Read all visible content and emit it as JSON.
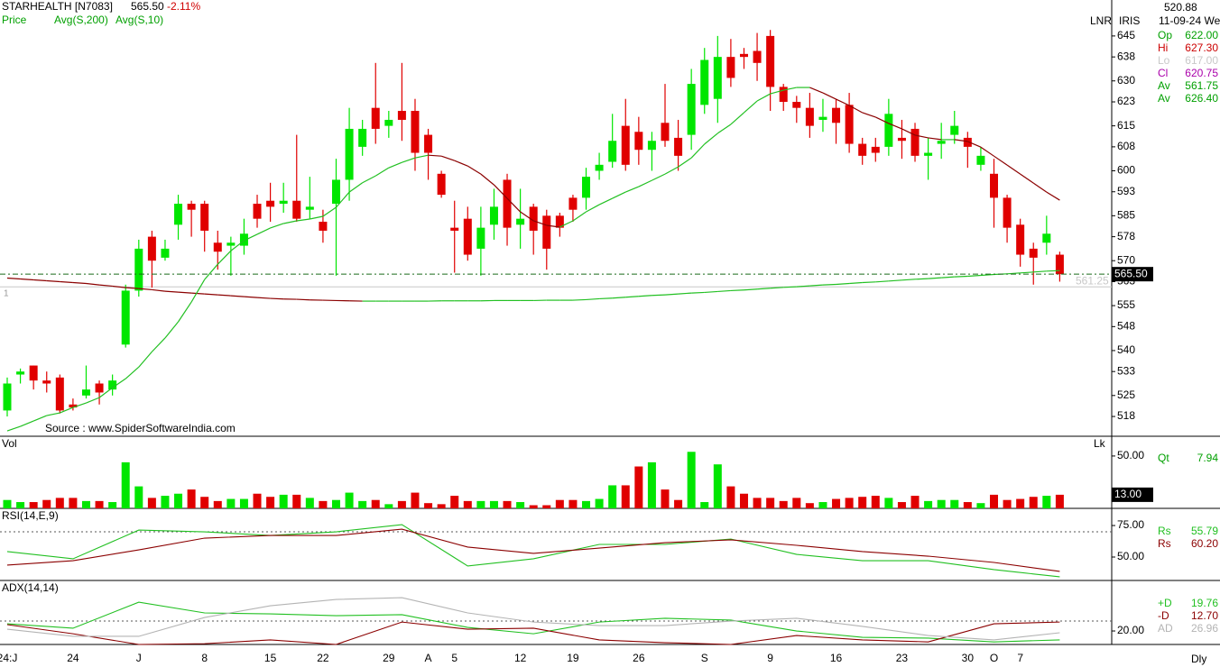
{
  "info": {
    "cursor": "520.88",
    "date": "11-09-24 We",
    "tags": [
      "LNR",
      "IRIS"
    ],
    "rows": [
      {
        "name": "Op",
        "value": "622.00",
        "color": "#00a000"
      },
      {
        "name": "Hi",
        "value": "627.30",
        "color": "#cc0000"
      },
      {
        "name": "Lo",
        "value": "617.00",
        "color": "#c8c8c8"
      },
      {
        "name": "Cl",
        "value": "620.75",
        "color": "#aa00aa"
      },
      {
        "name": "Av",
        "value": "561.75",
        "color": "#00a000"
      },
      {
        "name": "Av",
        "value": "626.40",
        "color": "#00a000"
      }
    ],
    "source": "Source : www.SpiderSoftwareIndia.com",
    "period": "Dly"
  },
  "chart_data": [
    {
      "type": "candlestick",
      "title": "STARHEALTH [N7083]",
      "last": {
        "value": 565.5,
        "label": "565.50"
      },
      "change": {
        "value": -2.11,
        "label": "-2.11%"
      },
      "reference": {
        "value": 561.25,
        "label": "561.25"
      },
      "note": "1",
      "axis_label": "LNR",
      "ylim": [
        511.4,
        657.0
      ],
      "yticks": [
        645,
        638,
        630,
        623,
        615,
        608,
        600,
        593,
        585,
        578,
        570,
        563,
        555,
        548,
        540,
        533,
        525,
        518
      ],
      "categories": [
        "24:J",
        null,
        null,
        null,
        null,
        "24",
        null,
        null,
        null,
        null,
        "J",
        null,
        null,
        null,
        null,
        "8",
        null,
        null,
        null,
        null,
        "15",
        null,
        null,
        null,
        "22",
        null,
        null,
        null,
        null,
        "29",
        null,
        null,
        "A",
        null,
        "5",
        null,
        null,
        null,
        null,
        "12",
        null,
        null,
        null,
        "19",
        null,
        null,
        null,
        null,
        "26",
        null,
        null,
        null,
        null,
        "S",
        null,
        null,
        null,
        null,
        "9",
        null,
        null,
        null,
        null,
        "16",
        null,
        null,
        null,
        null,
        "23",
        null,
        null,
        null,
        null,
        "30",
        null,
        "O",
        null,
        "7",
        null,
        null,
        null
      ],
      "candles": {
        "name": "Price",
        "up_color": "#00e600",
        "down_color": "#e00000",
        "open": [
          520,
          532,
          535,
          530,
          531,
          522,
          525,
          529,
          527,
          542,
          560,
          578,
          571,
          582,
          589,
          589,
          576,
          575,
          575,
          589,
          590,
          589,
          590,
          587,
          583,
          589,
          597,
          608,
          621,
          615,
          620,
          620,
          612,
          599,
          581,
          584,
          574,
          582,
          597,
          582,
          588,
          585,
          585,
          591,
          591,
          600,
          603,
          615,
          613,
          607,
          616,
          611,
          612,
          622,
          624,
          638,
          639,
          640,
          645,
          628,
          623,
          621,
          617,
          621,
          622,
          609,
          608,
          608,
          611,
          614,
          605,
          609,
          612,
          611,
          602,
          599,
          591,
          582,
          574,
          576,
          572
        ],
        "high": [
          531,
          534,
          535,
          533,
          532,
          524,
          535,
          530,
          532,
          562,
          577,
          580,
          577,
          592,
          590,
          590,
          580,
          578,
          584,
          592,
          596,
          596,
          612,
          598,
          587,
          604,
          621,
          617,
          636,
          620,
          636,
          624,
          614,
          600,
          590,
          588,
          588,
          594,
          599,
          594,
          589,
          587,
          586,
          592,
          601,
          606,
          619,
          624,
          618,
          613,
          629,
          617,
          634,
          641,
          645,
          644,
          641,
          646,
          647,
          629,
          625,
          626,
          624,
          624,
          626,
          611,
          611,
          624,
          617,
          616,
          611,
          616,
          620,
          613,
          608,
          604,
          592,
          584,
          576,
          585,
          573
        ],
        "low": [
          518,
          529,
          527,
          526,
          519,
          520,
          524,
          522,
          525,
          541,
          558,
          561,
          570,
          577,
          578,
          573,
          567,
          565,
          572,
          581,
          583,
          586,
          583,
          584,
          576,
          565,
          590,
          605,
          609,
          611,
          610,
          600,
          597,
          591,
          566,
          570,
          565,
          577,
          575,
          574,
          572,
          567,
          578,
          583,
          587,
          597,
          601,
          600,
          602,
          600,
          608,
          600,
          607,
          619,
          616,
          628,
          634,
          630,
          620,
          620,
          616,
          611,
          613,
          609,
          606,
          602,
          603,
          605,
          604,
          603,
          597,
          604,
          609,
          601,
          600,
          581,
          576,
          568,
          562,
          572,
          563
        ],
        "close": [
          529,
          533,
          530,
          529,
          520,
          521,
          527,
          526,
          530,
          560,
          574,
          570,
          574,
          589,
          587,
          580,
          573,
          576,
          579,
          584,
          588,
          590,
          584,
          588,
          580,
          597,
          614,
          614,
          614,
          617,
          617,
          606,
          606,
          592,
          580,
          572,
          581,
          588,
          581,
          584,
          580,
          574,
          581,
          587,
          598,
          602,
          610,
          602,
          607,
          610,
          610,
          605,
          629,
          637,
          638,
          631,
          638,
          636,
          628,
          623,
          621,
          615,
          618,
          616,
          609,
          605,
          606,
          619,
          610,
          605,
          606,
          610,
          615,
          608,
          605,
          591,
          581,
          572,
          571,
          579,
          565.5
        ]
      },
      "series": [
        {
          "name": "Avg(S,200)",
          "color": "#22c022",
          "down_color": "#8b0000",
          "values": [
            564.2,
            563.9,
            563.6,
            563.3,
            563.0,
            562.7,
            562.4,
            561.9,
            561.5,
            561.0,
            560.7,
            560.3,
            559.8,
            559.5,
            559.2,
            558.9,
            558.6,
            558.3,
            558.0,
            557.7,
            557.4,
            557.2,
            557.1,
            556.9,
            556.8,
            556.7,
            556.6,
            556.5,
            556.5,
            556.5,
            556.5,
            556.5,
            556.5,
            556.6,
            556.6,
            556.6,
            556.6,
            556.7,
            556.7,
            556.7,
            556.7,
            556.8,
            556.8,
            556.8,
            557.0,
            557.3,
            557.5,
            557.8,
            558.1,
            558.4,
            558.6,
            558.9,
            559.2,
            559.4,
            559.7,
            560.0,
            560.2,
            560.5,
            560.8,
            561.1,
            561.3,
            561.6,
            561.9,
            562.1,
            562.4,
            562.7,
            562.9,
            563.2,
            563.5,
            563.8,
            564.0,
            564.3,
            564.6,
            564.8,
            565.1,
            565.4,
            565.6,
            565.9,
            566.2,
            566.5,
            566.7
          ]
        },
        {
          "name": "Avg(S,10)",
          "color": "#22c022",
          "down_color": "#8b0000",
          "values": [
            513.2,
            514.7,
            516.5,
            518.3,
            519.2,
            521.0,
            522.5,
            524.3,
            527.6,
            530.6,
            534.5,
            539.6,
            544.2,
            549.6,
            556.2,
            563.7,
            568.8,
            573.3,
            576.7,
            578.8,
            580.9,
            582.4,
            583.3,
            583.9,
            584.8,
            587.8,
            592.9,
            596.0,
            598.3,
            601.0,
            602.8,
            604.3,
            605.2,
            604.9,
            603.4,
            601.6,
            598.9,
            595.3,
            590.8,
            586.3,
            583.3,
            581.8,
            581.2,
            583.3,
            586.3,
            588.7,
            590.8,
            592.9,
            594.7,
            596.8,
            598.9,
            601.3,
            604.3,
            608.9,
            612.5,
            615.5,
            619.4,
            623.3,
            625.7,
            626.9,
            627.8,
            627.8,
            626.0,
            623.9,
            621.8,
            619.4,
            617.9,
            615.8,
            614.0,
            611.9,
            611.0,
            610.4,
            610.4,
            609.8,
            607.9,
            604.9,
            601.9,
            598.9,
            595.9,
            592.9,
            590.2
          ]
        }
      ]
    },
    {
      "type": "bar",
      "title": "Vol",
      "unit": "Lk",
      "readout": {
        "name": "Qt",
        "value": "7.94"
      },
      "marker": {
        "value": 13,
        "label": "13.00"
      },
      "ylim": [
        0,
        68
      ],
      "yticks": [
        {
          "value": 50,
          "label": "50.00"
        }
      ],
      "values": [
        8,
        6,
        6,
        8,
        10,
        10,
        7,
        7,
        6,
        44,
        21,
        10,
        12,
        14,
        18,
        11,
        7,
        9,
        9,
        14,
        11,
        13,
        13,
        10,
        7,
        8,
        15,
        7,
        8,
        4,
        7,
        15,
        5,
        4,
        12,
        7,
        7,
        7,
        7,
        6,
        3,
        3,
        8,
        8,
        7,
        9,
        22,
        22,
        40,
        44,
        18,
        8,
        54,
        6,
        42,
        21,
        14,
        10,
        10,
        7,
        10,
        5,
        6,
        9,
        10,
        11,
        12,
        10,
        6,
        12,
        7,
        8,
        8,
        6,
        5,
        13,
        8,
        9,
        11,
        12,
        13
      ]
    },
    {
      "type": "line",
      "title": "RSI(14,E,9)",
      "ylim": [
        31.4,
        87.9
      ],
      "yticks": [
        {
          "value": 75,
          "label": "75.00"
        },
        {
          "value": 50,
          "label": "50.00"
        }
      ],
      "guides": [
        70
      ],
      "x": [
        0,
        5,
        10,
        15,
        20,
        25,
        30,
        35,
        40,
        45,
        50,
        55,
        60,
        65,
        70,
        75,
        80
      ],
      "series": [
        {
          "name": "Rs",
          "readout": "55.79",
          "color": "#22c022",
          "values": [
            54.3,
            48.6,
            71.4,
            70,
            67.1,
            70,
            75.7,
            42.9,
            48.6,
            60,
            60,
            64.3,
            52.1,
            47.1,
            47.1,
            40,
            34.3
          ]
        },
        {
          "name": "Rs",
          "readout": "60.20",
          "color": "#8b0000",
          "values": [
            43.6,
            47.1,
            55.7,
            65,
            67.1,
            67.1,
            72.1,
            57.9,
            52.9,
            57.1,
            61.4,
            63.6,
            59.3,
            54.3,
            50.7,
            45.7,
            38.6
          ]
        }
      ]
    },
    {
      "type": "line",
      "title": "ADX(14,14)",
      "ylim": [
        13.2,
        45
      ],
      "yticks": [
        {
          "value": 20,
          "label": "20.00"
        }
      ],
      "guides": [
        25
      ],
      "x": [
        0,
        5,
        10,
        15,
        20,
        25,
        30,
        35,
        40,
        45,
        50,
        55,
        60,
        65,
        70,
        75,
        80
      ],
      "series": [
        {
          "name": "+D",
          "readout": "19.76",
          "color": "#22c022",
          "values": [
            23.6,
            21.4,
            34.5,
            29.1,
            28.6,
            27.7,
            28.2,
            21.8,
            18.6,
            24.5,
            26.4,
            25.5,
            20,
            16.8,
            16.4,
            14.5,
            15.5
          ]
        },
        {
          "name": "-D",
          "readout": "12.70",
          "color": "#8b0000",
          "values": [
            23.2,
            18.6,
            13.2,
            13.6,
            15.5,
            13.2,
            24.5,
            20.9,
            21.4,
            15.5,
            14.1,
            13.2,
            17.7,
            15.5,
            14.5,
            23.6,
            24.5
          ]
        },
        {
          "name": "AD",
          "readout": "26.96",
          "color": "#b4b4b4",
          "values": [
            20.9,
            17.3,
            17.3,
            26.8,
            32.7,
            35.9,
            36.8,
            29.1,
            24.5,
            22.7,
            22.7,
            25,
            26.4,
            22.3,
            17.7,
            15.5,
            19.1
          ]
        }
      ]
    }
  ]
}
